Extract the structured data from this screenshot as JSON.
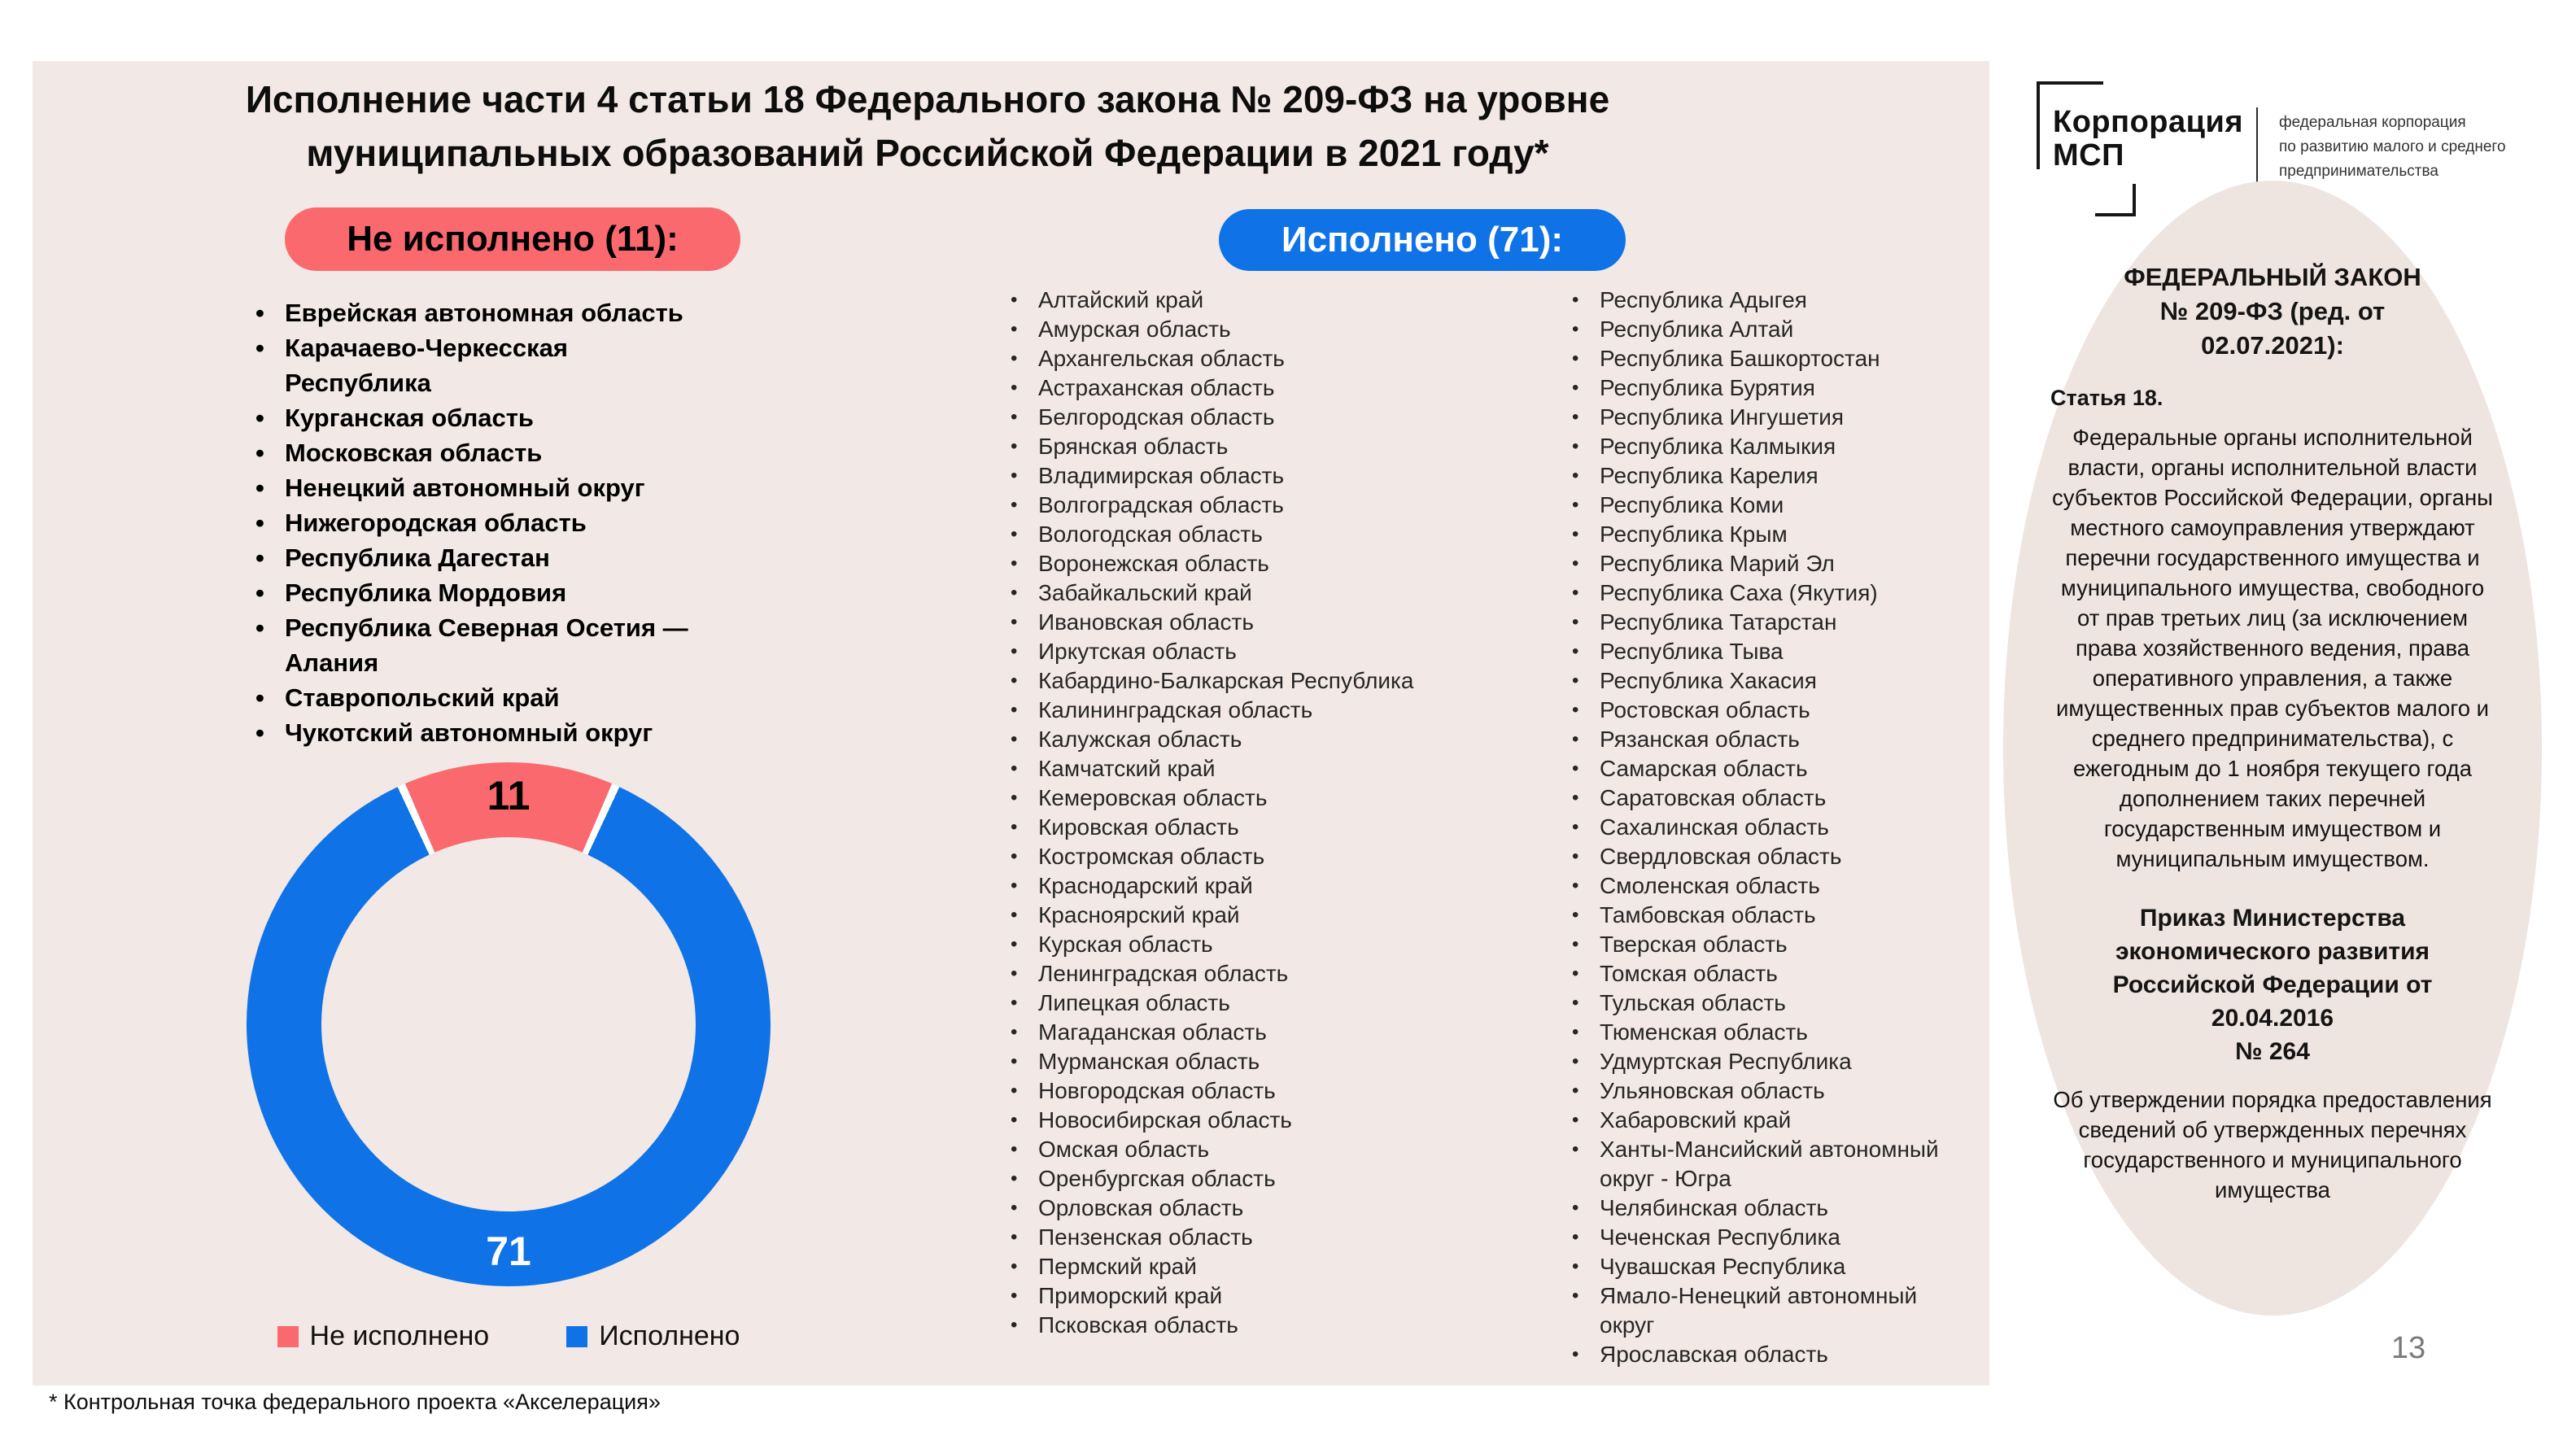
{
  "title": {
    "line1": "Исполнение части 4 статьи 18 Федерального закона № 209-ФЗ на уровне",
    "line2": "муниципальных образований Российской Федерации в 2021 году*"
  },
  "colors": {
    "red": "#F9696E",
    "blue": "#0F72E6",
    "slide_bg": "#F2E9E6",
    "panel_bg": "#EEE4E0",
    "page_number_gray": "#7A7A7A"
  },
  "not_executed": {
    "label": "Не исполнено (11):",
    "count": 11,
    "items": [
      "Еврейская автономная область",
      "Карачаево-Черкесская Республика",
      "Курганская область",
      "Московская область",
      "Ненецкий автономный округ",
      "Нижегородская область",
      "Республика Дагестан",
      "Республика Мордовия",
      "Республика Северная Осетия — Алания",
      "Ставропольский край",
      "Чукотский автономный округ"
    ]
  },
  "executed": {
    "label": "Исполнено (71):",
    "count": 71,
    "col1": [
      "Алтайский край",
      "Амурская область",
      "Архангельская область",
      "Астраханская область",
      "Белгородская область",
      "Брянская область",
      "Владимирская область",
      "Волгоградская область",
      "Вологодская область",
      "Воронежская область",
      "Забайкальский край",
      "Ивановская область",
      "Иркутская область",
      "Кабардино-Балкарская Республика",
      "Калининградская область",
      "Калужская область",
      "Камчатский край",
      "Кемеровская область",
      "Кировская область",
      "Костромская область",
      "Краснодарский край",
      "Красноярский край",
      "Курская область",
      "Ленинградская область",
      "Липецкая область",
      "Магаданская область",
      "Мурманская область",
      "Новгородская область",
      "Новосибирская область",
      "Омская область",
      "Оренбургская область",
      "Орловская область",
      "Пензенская область",
      "Пермский край",
      "Приморский край",
      "Псковская область"
    ],
    "col2": [
      "Республика Адыгея",
      "Республика Алтай",
      "Республика Башкортостан",
      "Республика Бурятия",
      "Республика Ингушетия",
      "Республика Калмыкия",
      "Республика Карелия",
      "Республика Коми",
      "Республика Крым",
      "Республика Марий Эл",
      "Республика Саха (Якутия)",
      "Республика Татарстан",
      "Республика Тыва",
      "Республика Хакасия",
      "Ростовская область",
      "Рязанская область",
      "Самарская область",
      "Саратовская область",
      "Сахалинская область",
      "Свердловская область",
      "Смоленская область",
      "Тамбовская область",
      "Тверская область",
      "Томская область",
      "Тульская область",
      "Тюменская область",
      "Удмуртская Республика",
      "Ульяновская область",
      "Хабаровский край",
      "Ханты-Мансийский автономный округ - Югра",
      "Челябинская область",
      "Чеченская Республика",
      "Чувашская Республика",
      "Ямало-Ненецкий автономный округ",
      "Ярославская область"
    ]
  },
  "chart_data": {
    "type": "pie",
    "donut": true,
    "labels": [
      "Не исполнено",
      "Исполнено"
    ],
    "values": [
      11,
      71
    ],
    "colors": [
      "#F9696E",
      "#0F72E6"
    ],
    "data_labels": [
      "11",
      "71"
    ],
    "legend_position": "bottom"
  },
  "legend": {
    "not_executed": "Не исполнено",
    "executed": "Исполнено"
  },
  "logo": {
    "name_line1": "Корпорация",
    "name_line2": "МСП",
    "tagline": "федеральная корпорация\nпо развитию малого и среднего\nпредпринимательства"
  },
  "law_panel": {
    "heading": "ФЕДЕРАЛЬНЫЙ ЗАКОН\n№ 209-ФЗ (ред. от\n02.07.2021):",
    "article_label": "Статья 18.",
    "article_text": "Федеральные органы исполнительной власти, органы исполнительной власти субъектов Российской Федерации, органы местного самоуправления утверждают перечни государственного имущества и муниципального имущества, свободного от прав третьих лиц (за исключением права хозяйственного ведения, права оперативного управления, а также имущественных прав субъектов малого и среднего предпринимательства), с ежегодным до 1 ноября текущего года дополнением таких перечней государственным имуществом и муниципальным имуществом.",
    "order_heading": "Приказ Министерства\nэкономического развития\nРоссийской Федерации от 20.04.2016\n№ 264",
    "order_text": "Об утверждении порядка предоставления сведений об утвержденных  перечнях государственного и муниципального имущества"
  },
  "page": {
    "number": "13",
    "footnote": "* Контрольная точка федерального проекта «Акселерация»"
  }
}
